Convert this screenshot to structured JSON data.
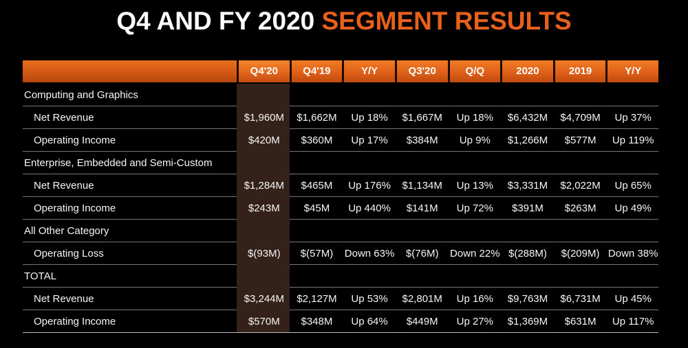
{
  "title": {
    "plain": "Q4 AND FY 2020 ",
    "accent": "SEGMENT RESULTS"
  },
  "colors": {
    "background": "#000000",
    "accent_orange": "#e8611c",
    "header_orange_top": "#f07c22",
    "header_orange_bottom": "#bf4a0e",
    "highlight_band": "#33211a",
    "text": "#f6f6f6",
    "divider": "#787878"
  },
  "chart_data": {
    "type": "table",
    "title": "Q4 AND FY 2020 SEGMENT RESULTS",
    "columns": [
      "Q4'20",
      "Q4'19",
      "Y/Y",
      "Q3'20",
      "Q/Q",
      "2020",
      "2019",
      "Y/Y"
    ],
    "highlight_index": 0,
    "highlighted_column": "Q4'20",
    "sections": [
      {
        "name": "Computing and Graphics",
        "rows": [
          {
            "label": "Net Revenue",
            "values": [
              "$1,960M",
              "$1,662M",
              "Up 18%",
              "$1,667M",
              "Up 18%",
              "$6,432M",
              "$4,709M",
              "Up 37%"
            ]
          },
          {
            "label": "Operating Income",
            "values": [
              "$420M",
              "$360M",
              "Up 17%",
              "$384M",
              "Up 9%",
              "$1,266M",
              "$577M",
              "Up 119%"
            ]
          }
        ]
      },
      {
        "name": "Enterprise, Embedded and Semi-Custom",
        "rows": [
          {
            "label": "Net Revenue",
            "values": [
              "$1,284M",
              "$465M",
              "Up 176%",
              "$1,134M",
              "Up 13%",
              "$3,331M",
              "$2,022M",
              "Up 65%"
            ]
          },
          {
            "label": "Operating Income",
            "values": [
              "$243M",
              "$45M",
              "Up 440%",
              "$141M",
              "Up 72%",
              "$391M",
              "$263M",
              "Up 49%"
            ]
          }
        ]
      },
      {
        "name": "All Other Category",
        "rows": [
          {
            "label": "Operating Loss",
            "values": [
              "$(93M)",
              "$(57M)",
              "Down 63%",
              "$(76M)",
              "Down 22%",
              "$(288M)",
              "$(209M)",
              "Down 38%"
            ]
          }
        ]
      },
      {
        "name": "TOTAL",
        "rows": [
          {
            "label": "Net Revenue",
            "values": [
              "$3,244M",
              "$2,127M",
              "Up 53%",
              "$2,801M",
              "Up 16%",
              "$9,763M",
              "$6,731M",
              "Up 45%"
            ]
          },
          {
            "label": "Operating Income",
            "values": [
              "$570M",
              "$348M",
              "Up 64%",
              "$449M",
              "Up 27%",
              "$1,369M",
              "$631M",
              "Up 117%"
            ]
          }
        ]
      }
    ]
  }
}
